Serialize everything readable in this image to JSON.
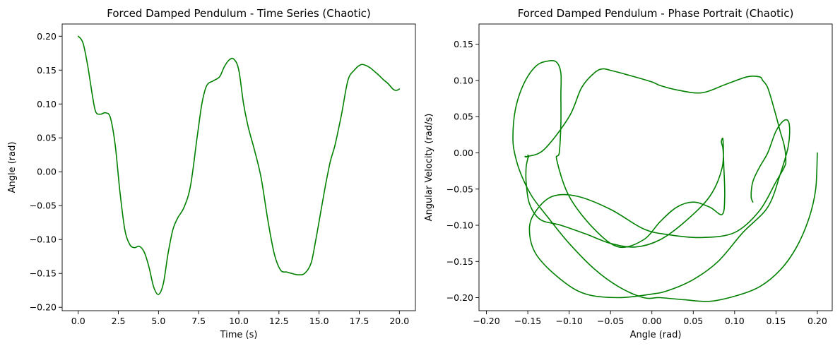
{
  "chart_data": [
    {
      "type": "line",
      "title": "Forced Damped Pendulum - Time Series (Chaotic)",
      "xlabel": "Time (s)",
      "ylabel": "Angle (rad)",
      "xlim": [
        -1.0,
        21.0
      ],
      "ylim": [
        -0.205,
        0.218
      ],
      "xticks": [
        0.0,
        2.5,
        5.0,
        7.5,
        10.0,
        12.5,
        15.0,
        17.5,
        20.0
      ],
      "xtick_labels": [
        "0.0",
        "2.5",
        "5.0",
        "7.5",
        "10.0",
        "12.5",
        "15.0",
        "17.5",
        "20.0"
      ],
      "yticks": [
        -0.2,
        -0.15,
        -0.1,
        -0.05,
        0.0,
        0.05,
        0.1,
        0.15,
        0.2
      ],
      "ytick_labels": [
        "−0.20",
        "−0.15",
        "−0.10",
        "−0.05",
        "0.00",
        "0.05",
        "0.10",
        "0.15",
        "0.20"
      ],
      "grid": false,
      "series": [
        {
          "color": "#008000",
          "x": [
            0.0,
            0.3,
            0.6,
            0.9,
            1.1,
            1.4,
            1.7,
            2.0,
            2.3,
            2.6,
            2.9,
            3.2,
            3.5,
            3.8,
            4.1,
            4.4,
            4.7,
            5.0,
            5.3,
            5.6,
            5.9,
            6.2,
            6.6,
            7.0,
            7.4,
            7.7,
            8.0,
            8.4,
            8.8,
            9.1,
            9.4,
            9.7,
            10.0,
            10.3,
            10.6,
            11.0,
            11.4,
            11.8,
            12.2,
            12.6,
            13.0,
            13.3,
            13.7,
            14.1,
            14.5,
            14.8,
            15.1,
            15.4,
            15.7,
            16.0,
            16.4,
            16.8,
            17.2,
            17.6,
            17.9,
            18.2,
            18.5,
            18.7,
            19.0,
            19.3,
            19.6,
            19.8,
            20.0
          ],
          "values": [
            0.2,
            0.19,
            0.155,
            0.11,
            0.088,
            0.085,
            0.087,
            0.08,
            0.04,
            -0.03,
            -0.085,
            -0.107,
            -0.112,
            -0.11,
            -0.118,
            -0.14,
            -0.17,
            -0.181,
            -0.165,
            -0.12,
            -0.085,
            -0.068,
            -0.052,
            -0.02,
            0.05,
            0.1,
            0.127,
            0.134,
            0.14,
            0.155,
            0.165,
            0.166,
            0.15,
            0.1,
            0.065,
            0.03,
            -0.01,
            -0.07,
            -0.12,
            -0.145,
            -0.148,
            -0.15,
            -0.152,
            -0.15,
            -0.135,
            -0.1,
            -0.06,
            -0.02,
            0.015,
            0.04,
            0.085,
            0.135,
            0.15,
            0.158,
            0.157,
            0.153,
            0.147,
            0.143,
            0.136,
            0.13,
            0.122,
            0.12,
            0.122
          ]
        }
      ]
    },
    {
      "type": "line",
      "title": "Forced Damped Pendulum - Phase Portrait (Chaotic)",
      "xlabel": "Angle (rad)",
      "ylabel": "Angular Velocity (rad/s)",
      "xlim": [
        -0.209,
        0.218
      ],
      "ylim": [
        -0.218,
        0.178
      ],
      "xticks": [
        -0.2,
        -0.15,
        -0.1,
        -0.05,
        0.0,
        0.05,
        0.1,
        0.15,
        0.2
      ],
      "xtick_labels": [
        "−0.20",
        "−0.15",
        "−0.10",
        "−0.05",
        "0.00",
        "0.05",
        "0.10",
        "0.15",
        "0.20"
      ],
      "yticks": [
        -0.2,
        -0.15,
        -0.1,
        -0.05,
        0.0,
        0.05,
        0.1,
        0.15
      ],
      "ytick_labels": [
        "−0.20",
        "−0.15",
        "−0.10",
        "−0.05",
        "0.00",
        "0.05",
        "0.10",
        "0.15"
      ],
      "grid": false,
      "series": [
        {
          "color": "#008000",
          "x": [
            0.2,
            0.198,
            0.19,
            0.175,
            0.155,
            0.13,
            0.1,
            0.07,
            0.04,
            0.01,
            -0.01,
            -0.04,
            -0.07,
            -0.1,
            -0.125,
            -0.145,
            -0.158,
            -0.165,
            -0.168,
            -0.165,
            -0.155,
            -0.14,
            -0.125,
            -0.115,
            -0.11,
            -0.11,
            -0.11,
            -0.112,
            -0.115,
            -0.1,
            -0.07,
            -0.04,
            -0.01,
            0.01,
            0.03,
            0.05,
            0.07,
            0.085,
            0.088,
            0.087,
            0.086,
            0.084,
            0.086,
            0.085,
            0.07,
            0.04,
            0.01,
            -0.02,
            -0.05,
            -0.08,
            -0.11,
            -0.135,
            -0.148,
            -0.152,
            -0.152,
            -0.15,
            -0.149,
            -0.15,
            -0.15,
            -0.153,
            -0.153,
            -0.15,
            -0.13,
            -0.1,
            -0.085,
            -0.07,
            -0.06,
            -0.05,
            -0.03,
            0.0,
            0.01,
            0.03,
            0.06,
            0.09,
            0.115,
            0.13,
            0.134,
            0.14,
            0.148,
            0.155,
            0.16,
            0.162,
            0.16,
            0.15,
            0.13,
            0.1,
            0.06,
            0.02,
            -0.01,
            -0.05,
            -0.09,
            -0.12,
            -0.14,
            -0.148,
            -0.14,
            -0.11,
            -0.08,
            -0.04,
            0.0,
            0.02,
            0.05,
            0.08,
            0.11,
            0.14,
            0.155,
            0.165,
            0.166,
            0.16,
            0.15,
            0.14,
            0.13,
            0.122,
            0.12,
            0.122
          ],
          "values": [
            0.0,
            -0.05,
            -0.09,
            -0.13,
            -0.162,
            -0.185,
            -0.198,
            -0.205,
            -0.203,
            -0.2,
            -0.2,
            -0.185,
            -0.16,
            -0.125,
            -0.09,
            -0.06,
            -0.03,
            -0.005,
            0.02,
            0.06,
            0.095,
            0.12,
            0.127,
            0.125,
            0.11,
            0.08,
            0.04,
            0.0,
            -0.01,
            -0.06,
            -0.105,
            -0.13,
            -0.12,
            -0.095,
            -0.075,
            -0.068,
            -0.075,
            -0.085,
            -0.06,
            -0.02,
            0.005,
            0.015,
            0.018,
            -0.02,
            -0.06,
            -0.095,
            -0.12,
            -0.13,
            -0.125,
            -0.112,
            -0.1,
            -0.092,
            -0.07,
            -0.04,
            -0.02,
            -0.008,
            -0.005,
            -0.003,
            -0.005,
            -0.005,
            -0.005,
            -0.005,
            0.005,
            0.05,
            0.09,
            0.11,
            0.116,
            0.114,
            0.108,
            0.098,
            0.093,
            0.087,
            0.083,
            0.095,
            0.105,
            0.105,
            0.1,
            0.09,
            0.06,
            0.03,
            0.01,
            -0.01,
            -0.02,
            -0.04,
            -0.08,
            -0.11,
            -0.117,
            -0.113,
            -0.105,
            -0.078,
            -0.06,
            -0.06,
            -0.08,
            -0.105,
            -0.14,
            -0.175,
            -0.195,
            -0.2,
            -0.195,
            -0.19,
            -0.175,
            -0.15,
            -0.11,
            -0.075,
            -0.03,
            0.01,
            0.04,
            0.045,
            0.03,
            0.0,
            -0.02,
            -0.04,
            -0.06,
            -0.068
          ]
        }
      ]
    }
  ]
}
